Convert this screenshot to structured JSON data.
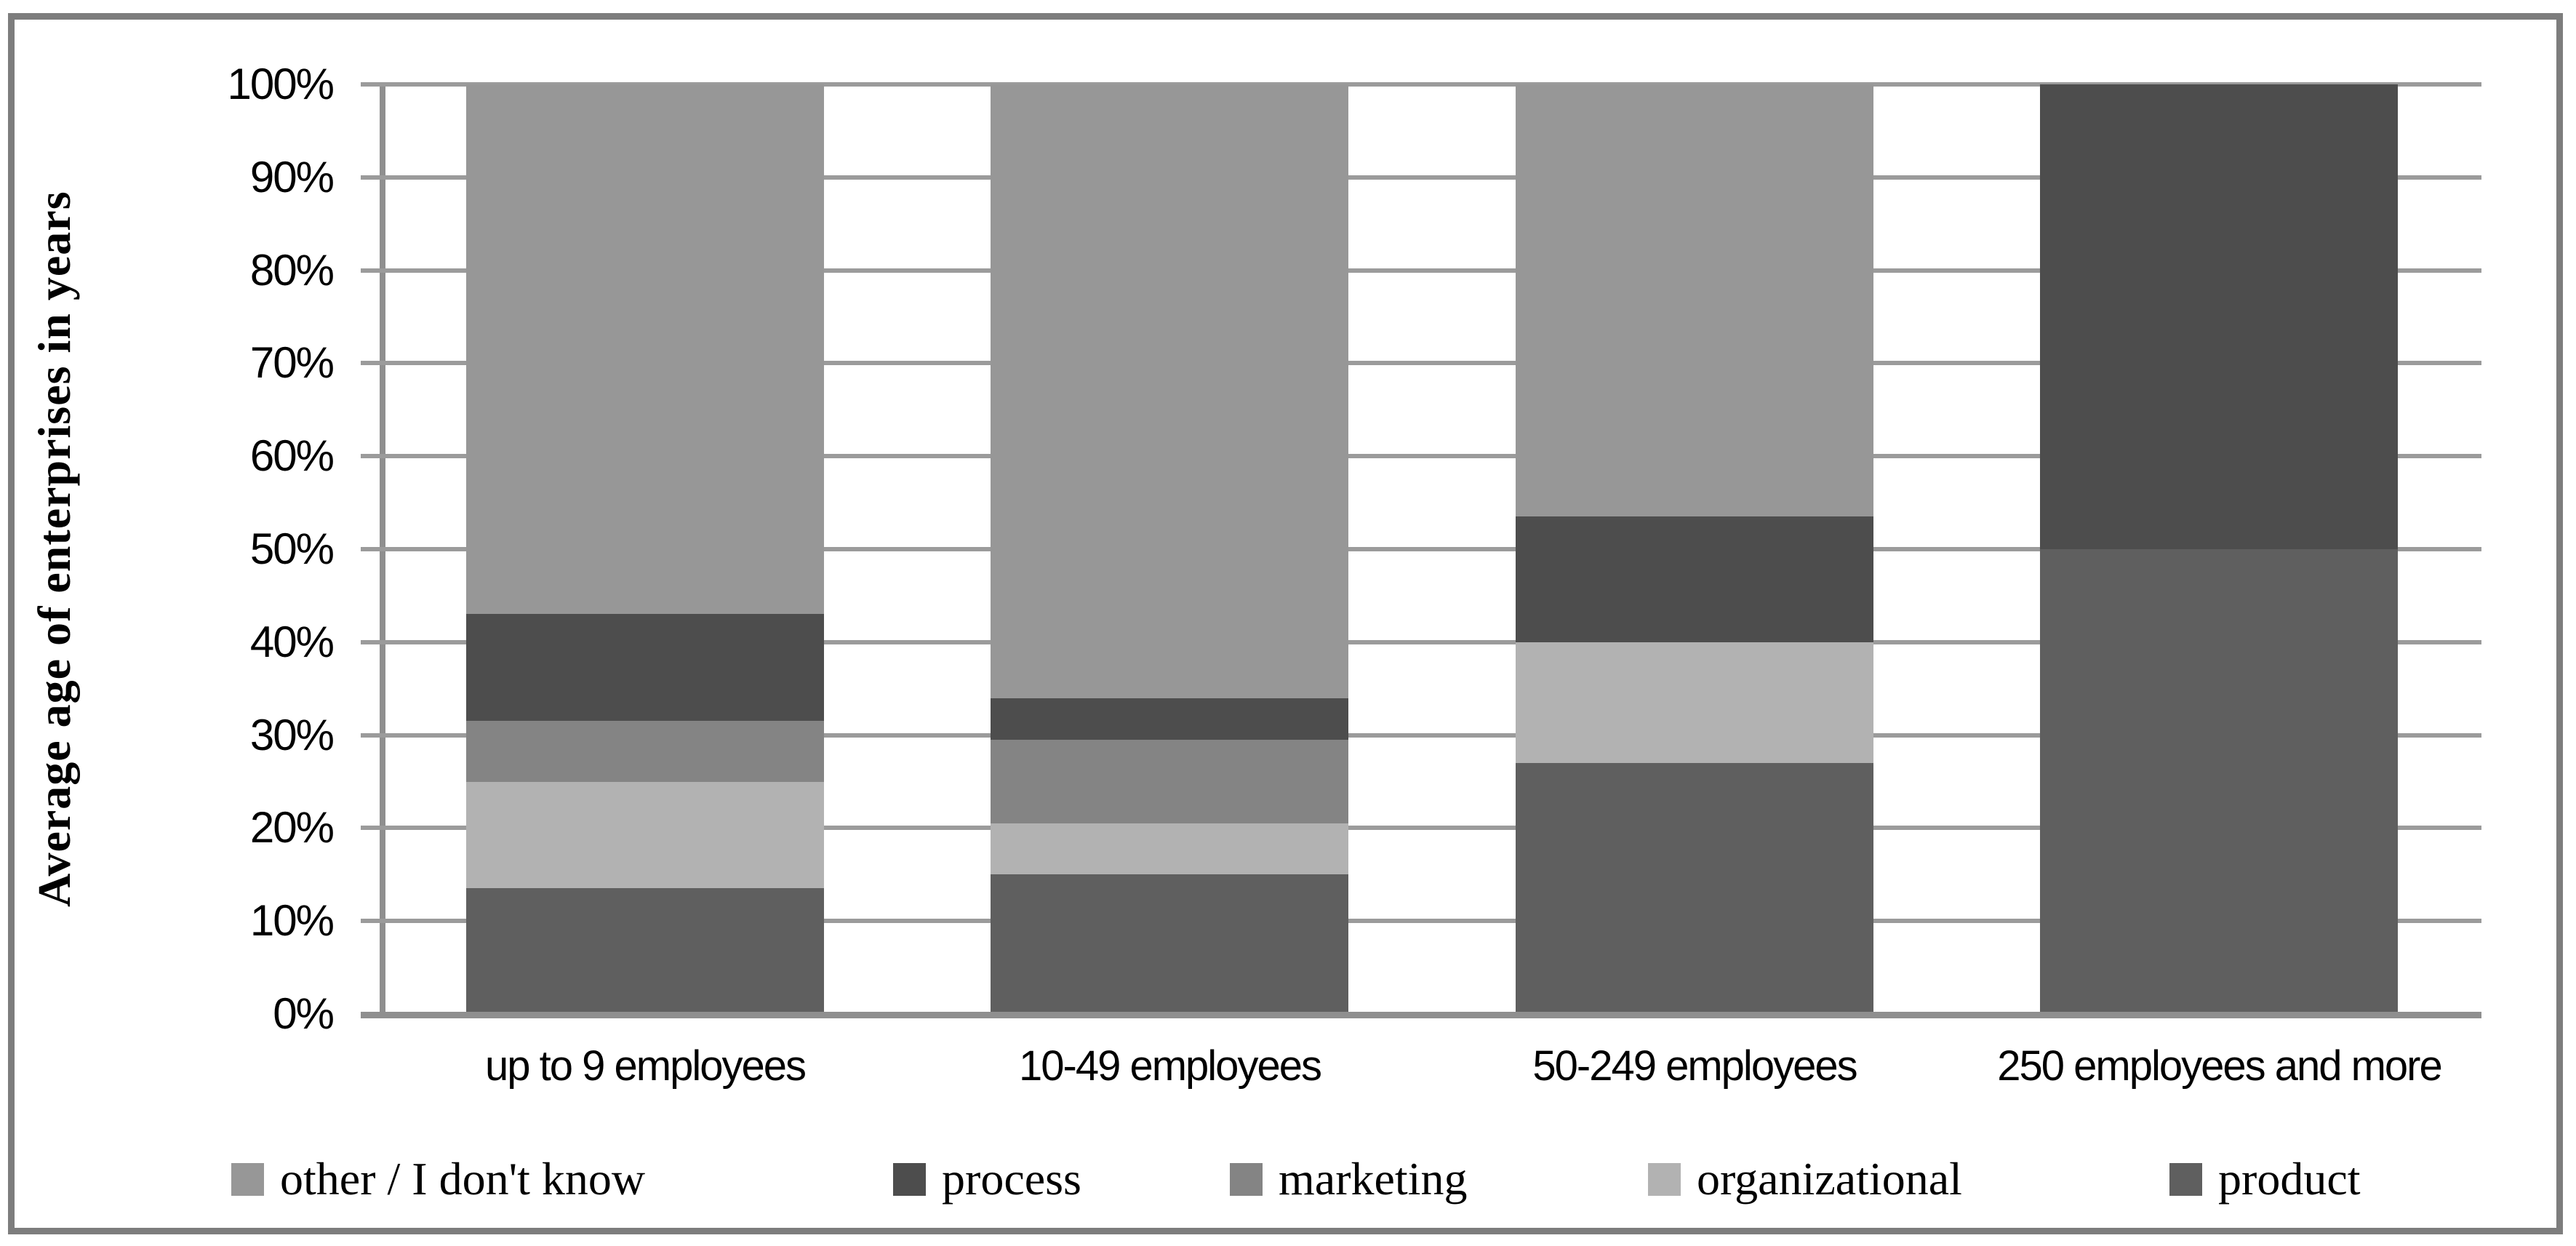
{
  "chart_data": {
    "type": "bar",
    "stacked": true,
    "unit": "%",
    "ylabel": "Average age of enterprises in years",
    "xlabel": "",
    "ylim": [
      0,
      100
    ],
    "grid": true,
    "y_ticks": [
      "100%",
      "90%",
      "80%",
      "70%",
      "60%",
      "50%",
      "40%",
      "30%",
      "20%",
      "10%",
      "0%"
    ],
    "categories": [
      "up to 9 employees",
      "10-49 employees",
      "50-249 employees",
      "250 employees and more"
    ],
    "stacking_order_bottom_to_top": [
      "product",
      "organizational",
      "marketing",
      "process",
      "other / I don't know"
    ],
    "series": [
      {
        "name": "product",
        "color": "#5f5f5f",
        "values": [
          13.5,
          15,
          27,
          50
        ]
      },
      {
        "name": "organizational",
        "color": "#b2b2b2",
        "values": [
          11.5,
          5.5,
          13,
          0
        ]
      },
      {
        "name": "marketing",
        "color": "#848484",
        "values": [
          6.5,
          9,
          0,
          0
        ]
      },
      {
        "name": "process",
        "color": "#4d4d4d",
        "values": [
          11.5,
          4.5,
          13.5,
          50
        ]
      },
      {
        "name": "other / I don't know",
        "color": "#979797",
        "values": [
          57,
          66,
          46.5,
          0
        ]
      }
    ],
    "legend": [
      {
        "label": "other / I don't know",
        "color": "#979797"
      },
      {
        "label": "process",
        "color": "#4d4d4d"
      },
      {
        "label": "marketing",
        "color": "#848484"
      },
      {
        "label": "organizational",
        "color": "#b2b2b2"
      },
      {
        "label": "product",
        "color": "#5f5f5f"
      }
    ],
    "legend_position": "bottom",
    "axis_color": "#8f8f8f",
    "gridline_color": "#9b9b9b",
    "frame_color": "#7d7d7d"
  }
}
